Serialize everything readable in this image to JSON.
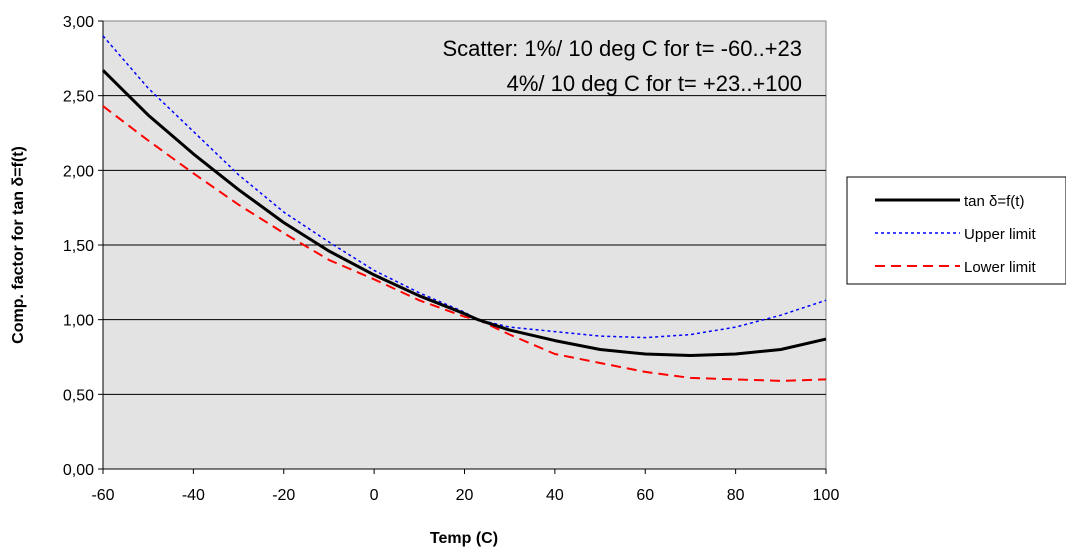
{
  "chart_data": {
    "type": "line",
    "xlabel": "Temp (C)",
    "ylabel": "Comp. factor for tan δ=f(t)",
    "xlim": [
      -60,
      100
    ],
    "ylim": [
      0,
      3
    ],
    "x_ticks": [
      "-60",
      "-40",
      "-20",
      "0",
      "20",
      "40",
      "60",
      "80",
      "100"
    ],
    "y_ticks": [
      "0,00",
      "0,50",
      "1,00",
      "1,50",
      "2,00",
      "2,50",
      "3,00"
    ],
    "grid": "horizontal",
    "plot_background": "#e3e3e3",
    "legend_position": "right",
    "annotations": [
      "Scatter: 1%/ 10 deg C for t= -60..+23",
      "4%/ 10 deg C for t= +23..+100"
    ],
    "x": [
      -60,
      -50,
      -40,
      -30,
      -20,
      -10,
      0,
      10,
      20,
      23,
      30,
      40,
      50,
      60,
      70,
      80,
      90,
      100
    ],
    "series": [
      {
        "name": "tan δ=f(t)",
        "color": "#000000",
        "style": "solid",
        "values": [
          2.67,
          2.37,
          2.11,
          1.87,
          1.65,
          1.46,
          1.3,
          1.16,
          1.04,
          1.0,
          0.93,
          0.86,
          0.8,
          0.77,
          0.76,
          0.77,
          0.8,
          0.87
        ]
      },
      {
        "name": "Upper limit",
        "color": "#0000ff",
        "style": "dotted",
        "values": [
          2.9,
          2.55,
          2.26,
          1.97,
          1.72,
          1.52,
          1.33,
          1.18,
          1.05,
          1.0,
          0.95,
          0.92,
          0.89,
          0.88,
          0.9,
          0.95,
          1.03,
          1.13
        ]
      },
      {
        "name": "Lower limit",
        "color": "#ff0000",
        "style": "dashed",
        "values": [
          2.43,
          2.2,
          1.98,
          1.77,
          1.58,
          1.4,
          1.27,
          1.13,
          1.02,
          1.0,
          0.9,
          0.77,
          0.71,
          0.65,
          0.61,
          0.6,
          0.59,
          0.6
        ]
      }
    ]
  }
}
